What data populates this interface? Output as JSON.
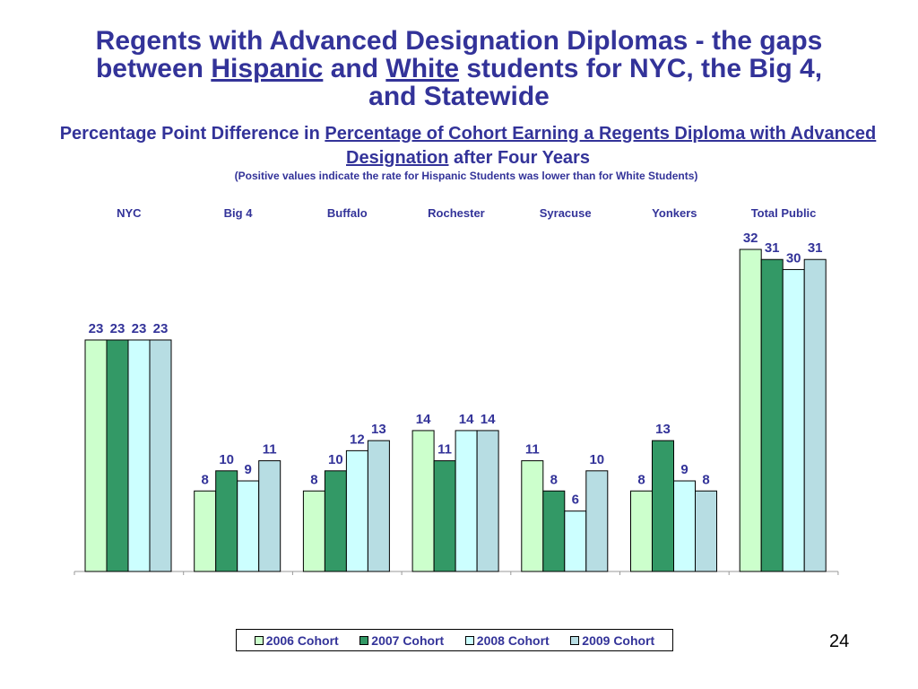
{
  "header": {
    "title_part1": "Regents with Advanced Designation Diplomas - the gaps",
    "title_between": "between ",
    "title_hispanic": "Hispanic",
    "title_and": " and ",
    "title_white": "White",
    "title_rest": " students for NYC, the Big 4,",
    "title_line3": "and Statewide",
    "subtitle_pre": "Percentage Point Difference in ",
    "subtitle_link": "Percentage of Cohort Earning a Regents Diploma with Advanced Designation",
    "subtitle_post": " after Four Years",
    "note": "(Positive values indicate the rate for Hispanic Students was lower than for White Students)"
  },
  "page_number": "24",
  "chart_data": {
    "type": "bar",
    "categories": [
      "NYC",
      "Big 4",
      "Buffalo",
      "Rochester",
      "Syracuse",
      "Yonkers",
      "Total Public"
    ],
    "series": [
      {
        "name": "2006 Cohort",
        "values": [
          23,
          8,
          8,
          14,
          11,
          8,
          32
        ],
        "color": "#ccffcc"
      },
      {
        "name": "2007 Cohort",
        "values": [
          23,
          10,
          10,
          11,
          8,
          13,
          31
        ],
        "color": "#339966"
      },
      {
        "name": "2008 Cohort",
        "values": [
          23,
          9,
          12,
          14,
          6,
          9,
          30
        ],
        "color": "#ccffff"
      },
      {
        "name": "2009 Cohort",
        "values": [
          23,
          11,
          13,
          14,
          10,
          8,
          31
        ],
        "color": "#b7dde3"
      }
    ],
    "ylim": [
      0,
      32
    ],
    "legend_position": "bottom",
    "grid": false
  }
}
